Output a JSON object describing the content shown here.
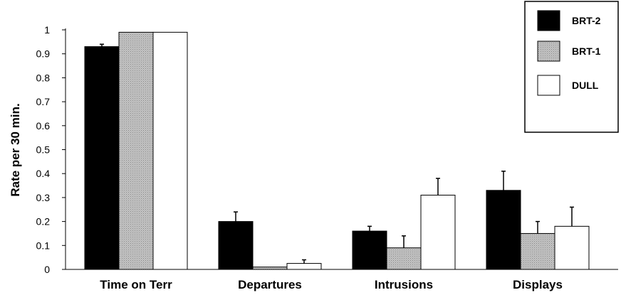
{
  "chart_data": {
    "type": "bar",
    "title": "",
    "xlabel": "",
    "ylabel": "Rate per 30 min.",
    "ylim": [
      0,
      1
    ],
    "yticks": [
      "0",
      "0.1",
      "0.2",
      "0.3",
      "0.4",
      "0.5",
      "0.6",
      "0.7",
      "0.8",
      "0.9",
      "1"
    ],
    "categories": [
      "Time on Terr",
      "Departures",
      "Intrusions",
      "Displays"
    ],
    "series": [
      {
        "name": "BRT-2",
        "color": "#000000",
        "values": [
          0.93,
          0.2,
          0.16,
          0.33
        ],
        "errors": [
          0.01,
          0.04,
          0.02,
          0.08
        ]
      },
      {
        "name": "BRT-1",
        "color": "#b8b8b8",
        "values": [
          0.99,
          0.01,
          0.09,
          0.15
        ],
        "errors": [
          0.0,
          0.0,
          0.05,
          0.05
        ]
      },
      {
        "name": "DULL",
        "color": "#ffffff",
        "values": [
          0.99,
          0.025,
          0.31,
          0.18
        ],
        "errors": [
          0.0,
          0.015,
          0.07,
          0.08
        ]
      }
    ],
    "grid": false,
    "legend_position": "top-right"
  }
}
